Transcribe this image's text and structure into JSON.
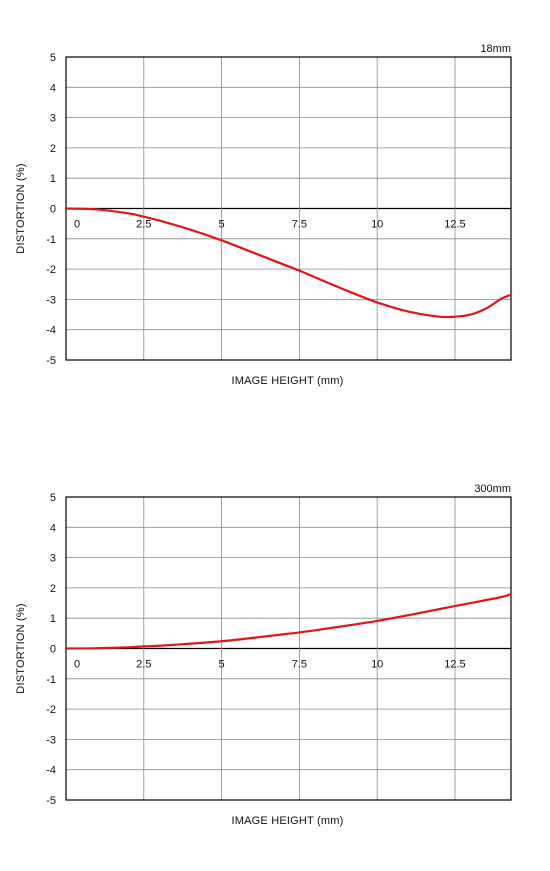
{
  "chart_data": [
    {
      "type": "line",
      "title": "18mm",
      "xlabel": "IMAGE HEIGHT (mm)",
      "ylabel": "DISTORTION (%)",
      "xlim": [
        0,
        14.3
      ],
      "ylim": [
        -5,
        5
      ],
      "x_ticks": [
        "0",
        "2.5",
        "5",
        "7.5",
        "10",
        "12.5"
      ],
      "y_ticks": [
        "5",
        "4",
        "3",
        "2",
        "1",
        "0",
        "-1",
        "-2",
        "-3",
        "-4",
        "-5"
      ],
      "grid": true,
      "color": "#e0161b",
      "series": [
        {
          "x": [
            0,
            1,
            2,
            2.5,
            3,
            4,
            5,
            6,
            7,
            7.5,
            8,
            9,
            10,
            11,
            12,
            12.5,
            13,
            13.5,
            14,
            14.3
          ],
          "values": [
            0,
            -0.03,
            -0.16,
            -0.27,
            -0.4,
            -0.7,
            -1.05,
            -1.45,
            -1.85,
            -2.05,
            -2.27,
            -2.7,
            -3.1,
            -3.4,
            -3.57,
            -3.57,
            -3.5,
            -3.3,
            -2.97,
            -2.85
          ]
        }
      ]
    },
    {
      "type": "line",
      "title": "300mm",
      "xlabel": "IMAGE HEIGHT (mm)",
      "ylabel": "DISTORTION (%)",
      "xlim": [
        0,
        14.3
      ],
      "ylim": [
        -5,
        5
      ],
      "x_ticks": [
        "0",
        "2.5",
        "5",
        "7.5",
        "10",
        "12.5"
      ],
      "y_ticks": [
        "5",
        "4",
        "3",
        "2",
        "1",
        "0",
        "-1",
        "-2",
        "-3",
        "-4",
        "-5"
      ],
      "grid": true,
      "color": "#e0161b",
      "series": [
        {
          "x": [
            0,
            1,
            2,
            2.5,
            3,
            4,
            5,
            6,
            7,
            7.5,
            8,
            9,
            10,
            11,
            12,
            12.5,
            13,
            14,
            14.3
          ],
          "values": [
            0,
            0.01,
            0.04,
            0.07,
            0.09,
            0.16,
            0.24,
            0.35,
            0.47,
            0.53,
            0.6,
            0.75,
            0.91,
            1.1,
            1.3,
            1.4,
            1.5,
            1.7,
            1.8
          ]
        }
      ]
    }
  ]
}
